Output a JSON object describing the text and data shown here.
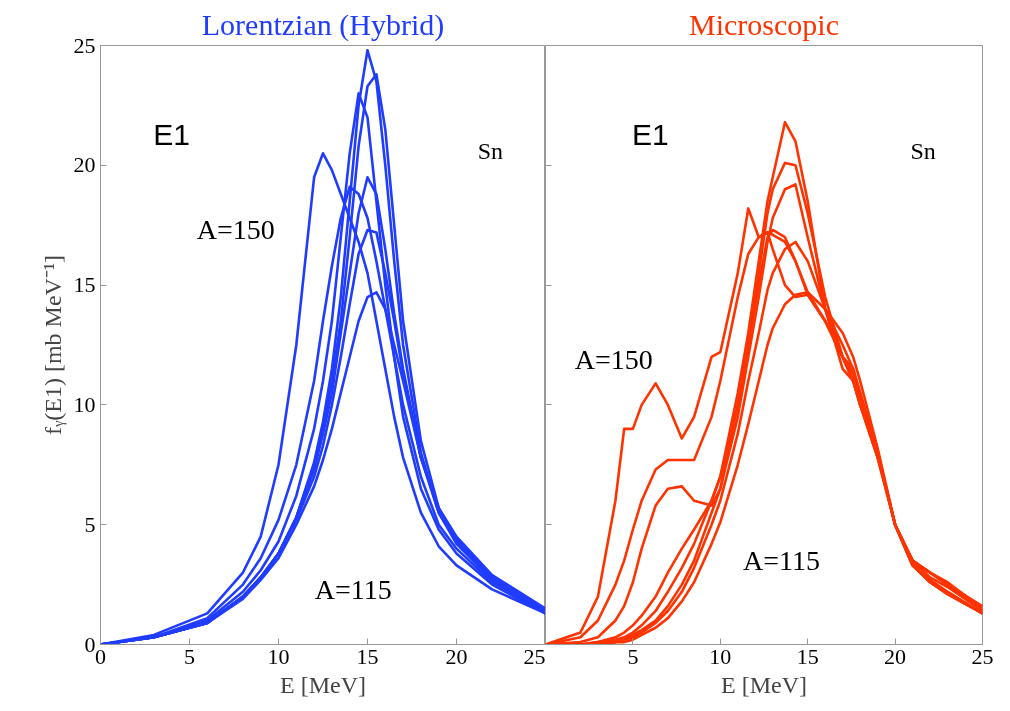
{
  "chart_data": [
    {
      "type": "line",
      "title": "Lorentzian (Hybrid)",
      "xlabel": "E [MeV]",
      "ylabel": "fᵧ(E1) [mb MeV⁻¹]",
      "x": [
        0,
        3,
        6,
        8,
        9,
        10,
        11,
        12,
        12.5,
        13,
        13.5,
        14,
        14.5,
        15,
        15.5,
        16,
        16.5,
        17,
        18,
        19,
        20,
        22,
        25
      ],
      "xlim": [
        0,
        25
      ],
      "ylim": [
        0,
        25
      ],
      "xticks": [
        0,
        5,
        10,
        15,
        20,
        25
      ],
      "yticks": [
        0,
        5,
        10,
        15,
        20,
        25
      ],
      "grid": false,
      "annotations": [
        "E1",
        "Sn",
        "A=150",
        "A=115"
      ],
      "series": [
        {
          "color": "#1f3cff",
          "values": [
            0,
            0.3,
            0.9,
            2,
            2.8,
            3.8,
            5.3,
            7.6,
            9.3,
            11.5,
            14.5,
            18.5,
            22.5,
            24.8,
            23.5,
            20,
            16,
            12.5,
            8,
            5.5,
            4.2,
            2.7,
            1.3
          ]
        },
        {
          "color": "#1f3cff",
          "values": [
            0,
            0.3,
            0.9,
            2,
            2.8,
            3.8,
            5.3,
            7.5,
            9,
            11,
            13.5,
            17,
            20.8,
            23.3,
            23.8,
            21.5,
            17.5,
            13.5,
            8.5,
            5.7,
            4.3,
            2.7,
            1.3
          ]
        },
        {
          "color": "#1f3cff",
          "values": [
            0,
            0.3,
            1,
            2.2,
            3.1,
            4.3,
            6.2,
            9,
            11,
            13.5,
            17,
            20.5,
            23,
            22,
            18.5,
            15,
            12,
            9.5,
            6.5,
            4.8,
            3.8,
            2.5,
            1.3
          ]
        },
        {
          "color": "#1f3cff",
          "values": [
            0,
            0.4,
            1.3,
            3,
            4.5,
            7.5,
            12.5,
            19.5,
            20.5,
            19.8,
            18.8,
            17.8,
            16.8,
            15.5,
            13.5,
            11.5,
            9.5,
            7.8,
            5.5,
            4.1,
            3.3,
            2.3,
            1.3
          ]
        },
        {
          "color": "#1f3cff",
          "values": [
            0,
            0.3,
            1.1,
            2.5,
            3.6,
            5.2,
            7.5,
            11,
            13.5,
            15.8,
            17.8,
            19.1,
            18.8,
            17.8,
            16,
            14,
            12,
            10,
            7,
            5,
            4,
            2.6,
            1.4
          ]
        },
        {
          "color": "#1f3cff",
          "values": [
            0,
            0.3,
            0.9,
            2,
            2.8,
            3.8,
            5.3,
            7.3,
            8.8,
            10.5,
            13,
            15.5,
            18,
            19.5,
            18.8,
            16.5,
            13.8,
            11.5,
            7.8,
            5.5,
            4.3,
            2.7,
            1.4
          ]
        },
        {
          "color": "#1f3cff",
          "values": [
            0,
            0.3,
            0.9,
            2,
            2.8,
            3.8,
            5.2,
            7,
            8.3,
            10,
            12,
            14.2,
            16.3,
            17.3,
            17.2,
            15.5,
            13.5,
            11.3,
            7.8,
            5.6,
            4.4,
            2.8,
            1.4
          ]
        },
        {
          "color": "#1f3cff",
          "values": [
            0,
            0.3,
            0.9,
            1.9,
            2.7,
            3.6,
            5,
            6.6,
            7.7,
            9,
            10.5,
            12,
            13.5,
            14.5,
            14.7,
            14,
            12.5,
            11,
            7.8,
            5.7,
            4.5,
            2.9,
            1.5
          ]
        }
      ]
    },
    {
      "type": "line",
      "title": "Microscopic",
      "xlabel": "E [MeV]",
      "x": [
        0,
        2,
        3,
        4,
        4.5,
        5,
        5.5,
        6.3,
        7,
        7.8,
        8.5,
        9.5,
        10,
        11,
        11.6,
        12.2,
        12.7,
        13,
        13.7,
        14.3,
        15,
        16,
        17,
        17.6,
        18,
        19,
        20,
        21,
        22,
        23,
        25
      ],
      "xlim": [
        0,
        25
      ],
      "ylim": [
        0,
        25
      ],
      "xticks": [
        {
          "value": 0,
          "label": null
        },
        5,
        10,
        15,
        20,
        25
      ],
      "yticks": [
        0,
        5,
        10,
        15,
        20,
        25
      ],
      "tick_labels": "x",
      "grid": false,
      "annotations": [
        "E1",
        "Sn",
        "A=150",
        "A=115"
      ],
      "series": [
        {
          "color": "#ff3300",
          "values": [
            0,
            0.5,
            2,
            6,
            9,
            9,
            10,
            10.9,
            10,
            8.6,
            9.5,
            12,
            12.2,
            15.5,
            18.2,
            17,
            17.2,
            16.5,
            15,
            14.5,
            14.6,
            13.5,
            12,
            11.5,
            10.5,
            8,
            5,
            3.5,
            3,
            2.6,
            1.5
          ]
        },
        {
          "color": "#ff3300",
          "values": [
            0,
            0.3,
            1,
            2.5,
            3.5,
            4.8,
            6,
            7.3,
            7.7,
            7.7,
            7.7,
            9.5,
            11,
            14.5,
            16.3,
            17,
            17.2,
            17.1,
            16.8,
            16,
            14.7,
            13.5,
            12,
            11,
            10,
            8,
            5,
            3.5,
            3,
            2.5,
            1.4
          ]
        },
        {
          "color": "#ff3300",
          "values": [
            0,
            0.1,
            0.3,
            1,
            1.6,
            2.6,
            4,
            5.8,
            6.5,
            6.6,
            6,
            5.8,
            6.5,
            10,
            12.5,
            15,
            17,
            17.3,
            17,
            16,
            14.6,
            13.5,
            12,
            11,
            10,
            7.8,
            5,
            3.5,
            2.8,
            2.4,
            1.4
          ]
        },
        {
          "color": "#ff3300",
          "values": [
            0,
            0,
            0.1,
            0.3,
            0.5,
            0.8,
            1.2,
            2,
            3,
            4,
            4.8,
            6,
            7,
            10.5,
            13,
            16,
            18.5,
            19.5,
            21.8,
            21,
            18.5,
            14,
            11.5,
            11,
            10,
            7.8,
            5,
            3.5,
            3,
            2.5,
            1.6
          ]
        },
        {
          "color": "#ff3300",
          "values": [
            0,
            0,
            0.1,
            0.2,
            0.3,
            0.5,
            0.8,
            1.4,
            2.2,
            3.2,
            4.2,
            6,
            7,
            10,
            12.5,
            15.5,
            18,
            19,
            20.1,
            20,
            18,
            14.5,
            12,
            11.3,
            10.3,
            8,
            5,
            3.3,
            2.7,
            2.2,
            1.3
          ]
        },
        {
          "color": "#ff3300",
          "values": [
            0,
            0,
            0,
            0.1,
            0.2,
            0.4,
            0.6,
            1,
            1.6,
            2.5,
            3.5,
            5.5,
            6.5,
            9.5,
            12,
            14.5,
            16.8,
            17.8,
            19,
            19.2,
            17,
            14,
            12,
            11,
            10.2,
            8,
            5,
            3.4,
            2.6,
            2.2,
            1.3
          ]
        },
        {
          "color": "#ff3300",
          "values": [
            0,
            0,
            0,
            0.1,
            0.2,
            0.3,
            0.5,
            0.9,
            1.4,
            2.2,
            3.2,
            5,
            6,
            8.8,
            11,
            13,
            14.8,
            15.5,
            16.5,
            16.8,
            16,
            14,
            12.5,
            11.5,
            10.5,
            8,
            5,
            3.3,
            2.6,
            2.1,
            1.3
          ]
        },
        {
          "color": "#ff3300",
          "values": [
            0,
            0,
            0,
            0.1,
            0.1,
            0.2,
            0.4,
            0.7,
            1.1,
            1.8,
            2.6,
            4.2,
            5.1,
            7.5,
            9.2,
            11,
            12.5,
            13.2,
            14.2,
            14.6,
            14.7,
            14,
            13,
            12,
            11,
            8.2,
            5,
            3.3,
            2.6,
            2.1,
            1.3
          ]
        }
      ]
    }
  ]
}
